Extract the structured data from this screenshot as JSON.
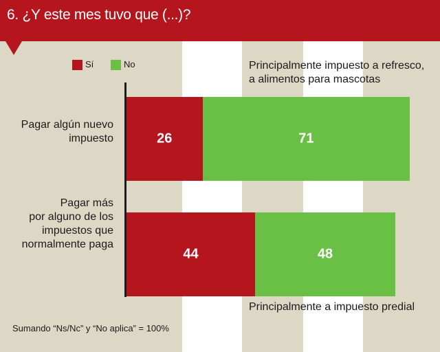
{
  "header": {
    "title": "6. ¿Y este mes tuvo que (...)?"
  },
  "legend": [
    {
      "label": "Sí",
      "color": "#b5151d"
    },
    {
      "label": "No",
      "color": "#6abf45"
    }
  ],
  "notes": {
    "top": [
      "Principalmente impuesto a refresco,",
      "a alimentos para mascotas"
    ],
    "bottom": "Principalmente a impuesto predial"
  },
  "footnote": "Sumando  “Ns/Nc” y “No aplica” = 100%",
  "chart_data": {
    "type": "bar",
    "orientation": "horizontal",
    "stacked": true,
    "categories": [
      [
        "Pagar algún nuevo",
        "impuesto"
      ],
      [
        "Pagar más",
        "por alguno de los",
        "impuestos que",
        "normalmente paga"
      ]
    ],
    "series": [
      {
        "name": "Sí",
        "values": [
          26,
          44
        ],
        "color": "#b5151d"
      },
      {
        "name": "No",
        "values": [
          71,
          48
        ],
        "color": "#6abf45"
      }
    ],
    "xlim": [
      0,
      100
    ]
  }
}
